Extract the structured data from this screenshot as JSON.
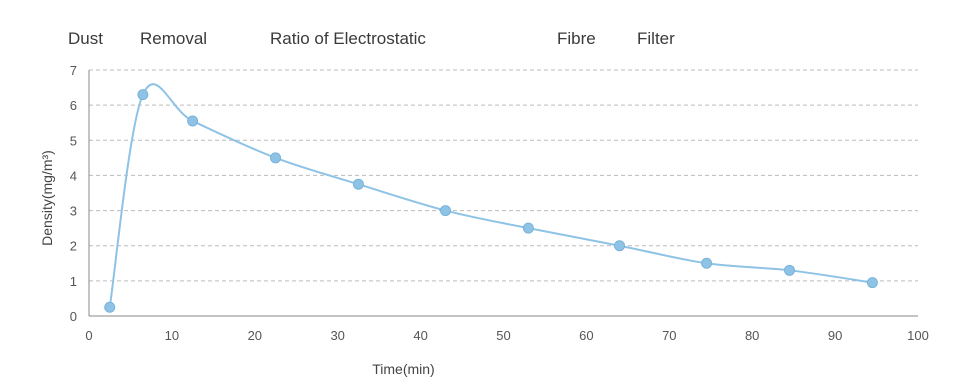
{
  "chart_data": {
    "type": "line",
    "title_words": [
      "Dust",
      "Removal",
      "Ratio of Electrostatic",
      "Fibre",
      "Filter"
    ],
    "xlabel": "Time(min)",
    "ylabel": "Density(mg/m³)",
    "xlim": [
      0,
      100
    ],
    "ylim": [
      0,
      7
    ],
    "x_ticks": [
      0,
      10,
      20,
      30,
      40,
      50,
      60,
      70,
      80,
      90,
      100
    ],
    "y_ticks": [
      0,
      1,
      2,
      3,
      4,
      5,
      6,
      7
    ],
    "grid": true,
    "series": [
      {
        "x": [
          2.5,
          6.5,
          12.5,
          22.5,
          32.5,
          43,
          53,
          64,
          74.5,
          84.5,
          94.5
        ],
        "y": [
          0.25,
          6.3,
          5.55,
          4.5,
          3.75,
          3.0,
          2.5,
          2.0,
          1.5,
          1.3,
          0.95
        ],
        "color": "#8fc3e6"
      }
    ]
  }
}
